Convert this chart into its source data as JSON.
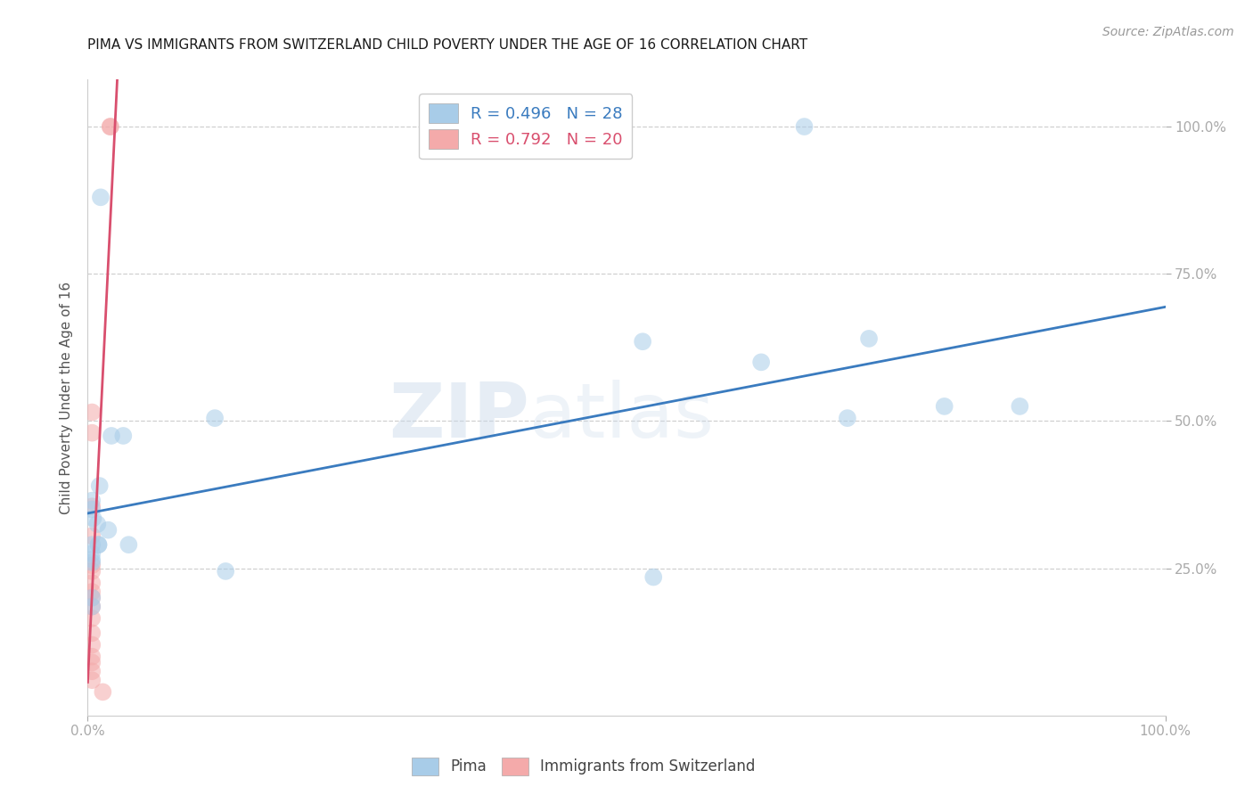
{
  "title": "PIMA VS IMMIGRANTS FROM SWITZERLAND CHILD POVERTY UNDER THE AGE OF 16 CORRELATION CHART",
  "source": "Source: ZipAtlas.com",
  "ylabel": "Child Poverty Under the Age of 16",
  "watermark_zip": "ZIP",
  "watermark_atlas": "atlas",
  "legend_blue_r": "R = 0.496",
  "legend_blue_n": "N = 28",
  "legend_pink_r": "R = 0.792",
  "legend_pink_n": "N = 20",
  "blue_scatter_color": "#a8cce8",
  "pink_scatter_color": "#f4aaaa",
  "blue_line_color": "#3a7bbf",
  "pink_line_color": "#d94f6e",
  "pima_x": [
    0.665,
    0.012,
    0.022,
    0.033,
    0.011,
    0.004,
    0.004,
    0.005,
    0.009,
    0.019,
    0.038,
    0.01,
    0.01,
    0.004,
    0.004,
    0.004,
    0.004,
    0.004,
    0.004,
    0.118,
    0.128,
    0.525,
    0.515,
    0.625,
    0.725,
    0.705,
    0.795,
    0.865
  ],
  "pima_y": [
    1.0,
    0.88,
    0.475,
    0.475,
    0.39,
    0.365,
    0.35,
    0.335,
    0.325,
    0.315,
    0.29,
    0.29,
    0.29,
    0.29,
    0.275,
    0.265,
    0.26,
    0.2,
    0.185,
    0.505,
    0.245,
    0.235,
    0.635,
    0.6,
    0.64,
    0.505,
    0.525,
    0.525
  ],
  "swiss_x": [
    0.021,
    0.021,
    0.004,
    0.004,
    0.004,
    0.004,
    0.004,
    0.004,
    0.004,
    0.004,
    0.004,
    0.004,
    0.004,
    0.004,
    0.004,
    0.004,
    0.004,
    0.004,
    0.004,
    0.014
  ],
  "swiss_y": [
    1.0,
    1.0,
    0.515,
    0.48,
    0.355,
    0.305,
    0.255,
    0.245,
    0.225,
    0.21,
    0.2,
    0.185,
    0.165,
    0.14,
    0.12,
    0.1,
    0.09,
    0.075,
    0.06,
    0.04
  ],
  "xlim": [
    0.0,
    1.0
  ],
  "ylim": [
    0.0,
    1.08
  ],
  "yticks": [
    0.25,
    0.5,
    0.75,
    1.0
  ],
  "ytick_labels": [
    "25.0%",
    "50.0%",
    "75.0%",
    "100.0%"
  ],
  "xticks": [
    0.0,
    1.0
  ],
  "xtick_labels": [
    "0.0%",
    "100.0%"
  ],
  "background": "#ffffff",
  "grid_color": "#d0d0d0",
  "spine_color": "#cccccc",
  "tick_color": "#7bafd4",
  "title_fontsize": 11,
  "axis_label_fontsize": 11,
  "tick_fontsize": 11,
  "legend_fontsize": 13
}
